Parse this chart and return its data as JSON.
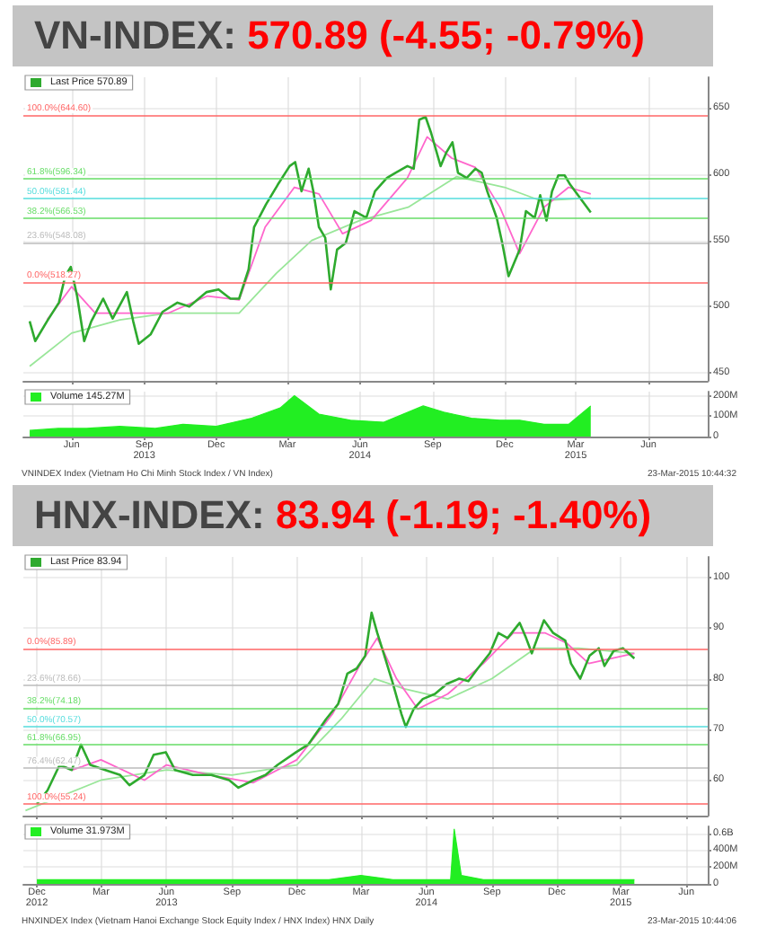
{
  "chart_data": [
    {
      "type": "line",
      "title": "VN-INDEX: 570.89 (-4.55; -0.79%)",
      "legend": "top left",
      "grid": true,
      "tick_labels": "y",
      "marker": "none",
      "xlim": [
        "2013-04-01",
        "2015-08-15"
      ],
      "xticks": [
        {
          "value": "2013-06-01",
          "label": null
        },
        {
          "value": "2013-09-01",
          "label": null
        },
        {
          "value": "2013-12-01",
          "label": null
        },
        {
          "value": "2014-03-01",
          "label": null
        },
        {
          "value": "2014-06-01",
          "label": null
        },
        {
          "value": "2014-09-01",
          "label": null
        },
        {
          "value": "2014-12-01",
          "label": null
        },
        {
          "value": "2015-03-01",
          "label": null
        },
        {
          "value": "2015-06-01",
          "label": null
        }
      ],
      "ylim": [
        444,
        673
      ],
      "yticks": [
        450,
        500,
        550,
        600,
        650
      ],
      "series": [
        {
          "name": "Last Price 570.89",
          "color": "#2eaa2e",
          "x": [
            "2013-04-09",
            "2013-04-16",
            "2013-05-01",
            "2013-05-16",
            "2013-05-24",
            "2013-05-31",
            "2013-06-08",
            "2013-06-17",
            "2013-06-26",
            "2013-07-11",
            "2013-07-23",
            "2013-08-10",
            "2013-08-18",
            "2013-08-25",
            "2013-09-09",
            "2013-09-24",
            "2013-10-13",
            "2013-10-28",
            "2013-11-19",
            "2013-12-04",
            "2013-12-19",
            "2013-12-30",
            "2014-01-11",
            "2014-01-18",
            "2014-02-02",
            "2014-02-17",
            "2014-03-04",
            "2014-03-11",
            "2014-03-19",
            "2014-03-28",
            "2014-04-03",
            "2014-04-10",
            "2014-04-18",
            "2014-04-25",
            "2014-05-03",
            "2014-05-14",
            "2014-05-25",
            "2014-06-09",
            "2014-06-20",
            "2014-07-05",
            "2014-07-16",
            "2014-07-31",
            "2014-08-08",
            "2014-08-15",
            "2014-08-23",
            "2014-08-30",
            "2014-09-11",
            "2014-09-18",
            "2014-09-26",
            "2014-10-03",
            "2014-10-14",
            "2014-10-25",
            "2014-11-02",
            "2014-11-09",
            "2014-11-21",
            "2014-11-28",
            "2014-12-06",
            "2014-12-13",
            "2014-12-20",
            "2014-12-28",
            "2015-01-08",
            "2015-01-15",
            "2015-01-23",
            "2015-01-30",
            "2015-02-07",
            "2015-02-15",
            "2015-02-22",
            "2015-03-20"
          ],
          "values": [
            489,
            474,
            489,
            503,
            523,
            530,
            508,
            474,
            489,
            506,
            491,
            511,
            489,
            472,
            479,
            496,
            503,
            500,
            511,
            513,
            506,
            506,
            528,
            560,
            577,
            592,
            606,
            609,
            587,
            604,
            587,
            560,
            552,
            513,
            543,
            548,
            572,
            567,
            587,
            597,
            601,
            606,
            604,
            641,
            643,
            631,
            606,
            616,
            624,
            601,
            597,
            604,
            601,
            587,
            567,
            548,
            523,
            533,
            543,
            572,
            567,
            584,
            565,
            587,
            599,
            599,
            592,
            571
          ]
        },
        {
          "color": "#ff66cc",
          "x": [
            "2013-05-01",
            "2013-06-01",
            "2013-07-01",
            "2013-08-15",
            "2013-10-01",
            "2013-11-20",
            "2013-12-30",
            "2014-02-01",
            "2014-03-10",
            "2014-04-10",
            "2014-05-10",
            "2014-06-15",
            "2014-07-31",
            "2014-08-25",
            "2014-09-25",
            "2014-10-25",
            "2014-11-25",
            "2014-12-20",
            "2015-01-20",
            "2015-02-20",
            "2015-03-20"
          ],
          "values": [
            490,
            515,
            495,
            495,
            495,
            508,
            505,
            560,
            590,
            585,
            555,
            565,
            597,
            628,
            612,
            605,
            575,
            540,
            575,
            590,
            585
          ]
        },
        {
          "color": "#99e699",
          "x": [
            "2013-04-09",
            "2013-06-01",
            "2013-08-01",
            "2013-10-01",
            "2013-12-30",
            "2014-02-15",
            "2014-04-01",
            "2014-06-01",
            "2014-08-01",
            "2014-10-01",
            "2014-12-01",
            "2015-01-15",
            "2015-03-20"
          ],
          "values": [
            455,
            480,
            490,
            495,
            495,
            525,
            550,
            565,
            575,
            598,
            590,
            580,
            582
          ]
        }
      ],
      "ref_lines": [
        {
          "axis": "y",
          "value": 644.6,
          "label": "100.0%(644.60)",
          "color": "#ff6666"
        },
        {
          "axis": "y",
          "value": 596.34,
          "label": "61.8%(596.34)",
          "color": "#66dd66"
        },
        {
          "axis": "y",
          "value": 581.44,
          "label": "50.0%(581.44)",
          "color": "#55dddd"
        },
        {
          "axis": "y",
          "value": 566.53,
          "label": "38.2%(566.53)",
          "color": "#66dd66"
        },
        {
          "axis": "y",
          "value": 548.08,
          "label": "23.6%(548.08)",
          "color": "#bbbbbb"
        },
        {
          "axis": "y",
          "value": 518.27,
          "label": "0.0%(518.27)",
          "color": "#ff6666"
        }
      ]
    },
    {
      "type": "area",
      "legend": "top left",
      "grid": true,
      "xlim": [
        "2013-04-01",
        "2015-08-15"
      ],
      "xticks": [
        {
          "value": "2013-06-01",
          "label": "Jun"
        },
        {
          "value": "2013-09-01",
          "label": "Sep\n2013"
        },
        {
          "value": "2013-12-01",
          "label": "Dec"
        },
        {
          "value": "2014-03-01",
          "label": "Mar"
        },
        {
          "value": "2014-06-01",
          "label": "Jun\n2014"
        },
        {
          "value": "2014-09-01",
          "label": "Sep"
        },
        {
          "value": "2014-12-01",
          "label": "Dec"
        },
        {
          "value": "2015-03-01",
          "label": "Mar\n2015"
        },
        {
          "value": "2015-06-01",
          "label": "Jun"
        }
      ],
      "ylim": [
        0,
        220000000
      ],
      "yticks": [
        {
          "value": 0,
          "label": "0"
        },
        {
          "value": 100000000,
          "label": "100M"
        },
        {
          "value": 200000000,
          "label": "200M"
        }
      ],
      "x": [
        "2013-04-09",
        "2013-05-15",
        "2013-06-20",
        "2013-08-01",
        "2013-09-15",
        "2013-10-20",
        "2013-12-01",
        "2014-01-15",
        "2014-02-20",
        "2014-03-10",
        "2014-04-10",
        "2014-05-20",
        "2014-07-01",
        "2014-08-20",
        "2014-09-15",
        "2014-10-20",
        "2014-11-25",
        "2014-12-20",
        "2015-01-20",
        "2015-02-20",
        "2015-03-20"
      ],
      "series": [
        {
          "name": "Volume 145.27M",
          "color": "#22ee22",
          "values": [
            30000000,
            40000000,
            40000000,
            50000000,
            40000000,
            60000000,
            50000000,
            90000000,
            140000000,
            200000000,
            110000000,
            80000000,
            70000000,
            150000000,
            120000000,
            90000000,
            80000000,
            80000000,
            60000000,
            60000000,
            150000000
          ]
        }
      ],
      "annotations": [
        "VNINDEX Index (Vietnam Ho Chi Minh Stock Index / VN Index)",
        "23-Mar-2015 10:44:32"
      ]
    },
    {
      "type": "line",
      "title": "HNX-INDEX: 83.94 (-1.19; -1.40%)",
      "legend": "top left",
      "grid": true,
      "tick_labels": "y",
      "marker": "none",
      "xlim": [
        "2012-11-12",
        "2015-07-01"
      ],
      "xticks": [
        {
          "value": "2012-12-01",
          "label": null
        },
        {
          "value": "2013-03-01",
          "label": null
        },
        {
          "value": "2013-06-01",
          "label": null
        },
        {
          "value": "2013-09-01",
          "label": null
        },
        {
          "value": "2013-12-01",
          "label": null
        },
        {
          "value": "2014-03-01",
          "label": null
        },
        {
          "value": "2014-06-01",
          "label": null
        },
        {
          "value": "2014-09-01",
          "label": null
        },
        {
          "value": "2014-12-01",
          "label": null
        },
        {
          "value": "2015-03-01",
          "label": null
        },
        {
          "value": "2015-06-01",
          "label": null
        }
      ],
      "ylim": [
        53,
        104
      ],
      "yticks": [
        60,
        70,
        80,
        90,
        100
      ],
      "series": [
        {
          "name": "Last Price 83.94",
          "color": "#2eaa2e",
          "x": [
            "2012-12-01",
            "2012-12-16",
            "2013-01-02",
            "2013-01-19",
            "2013-02-01",
            "2013-02-14",
            "2013-03-07",
            "2013-03-28",
            "2013-04-10",
            "2013-05-01",
            "2013-05-14",
            "2013-05-31",
            "2013-06-13",
            "2013-07-08",
            "2013-08-03",
            "2013-08-28",
            "2013-09-10",
            "2013-10-01",
            "2013-10-18",
            "2013-11-04",
            "2013-11-30",
            "2013-12-17",
            "2014-01-11",
            "2014-01-28",
            "2014-02-10",
            "2014-02-23",
            "2014-03-07",
            "2014-03-16",
            "2014-03-24",
            "2014-04-02",
            "2014-04-15",
            "2014-04-27",
            "2014-05-03",
            "2014-05-14",
            "2014-05-27",
            "2014-06-13",
            "2014-06-30",
            "2014-07-17",
            "2014-07-30",
            "2014-08-12",
            "2014-08-29",
            "2014-09-10",
            "2014-09-23",
            "2014-10-10",
            "2014-10-19",
            "2014-10-27",
            "2014-11-13",
            "2014-11-26",
            "2014-12-13",
            "2014-12-21",
            "2015-01-03",
            "2015-01-16",
            "2015-01-29",
            "2015-02-06",
            "2015-02-19",
            "2015-03-04",
            "2015-03-12",
            "2015-03-20"
          ],
          "values": [
            55.3,
            58,
            63,
            62,
            67,
            63,
            62,
            61,
            59,
            61,
            65,
            65.5,
            62,
            61,
            61,
            60,
            58.5,
            60,
            61,
            63,
            65.5,
            67,
            72,
            75,
            81,
            82,
            84.5,
            93,
            89,
            85,
            79,
            73,
            70.5,
            74,
            76,
            77,
            79,
            80,
            79.5,
            82,
            85,
            89,
            88,
            91,
            88,
            85,
            91.5,
            89,
            87.5,
            83,
            80,
            84.5,
            86,
            82.5,
            85.5,
            86,
            85,
            84
          ]
        },
        {
          "color": "#ff66cc",
          "x": [
            "2013-01-20",
            "2013-03-01",
            "2013-05-01",
            "2013-06-01",
            "2013-08-01",
            "2013-10-01",
            "2013-12-01",
            "2014-01-20",
            "2014-03-01",
            "2014-03-24",
            "2014-04-20",
            "2014-05-20",
            "2014-07-01",
            "2014-08-20",
            "2014-10-01",
            "2014-11-15",
            "2014-12-15",
            "2015-01-15",
            "2015-03-20"
          ],
          "values": [
            62,
            64,
            60,
            63,
            61,
            59.5,
            64,
            73,
            83,
            88,
            80,
            74,
            77,
            83,
            89,
            89,
            87,
            83,
            85
          ]
        },
        {
          "color": "#99e699",
          "x": [
            "2012-11-15",
            "2013-03-01",
            "2013-06-01",
            "2013-09-01",
            "2013-12-01",
            "2014-02-01",
            "2014-03-20",
            "2014-05-01",
            "2014-07-01",
            "2014-09-01",
            "2014-11-01",
            "2015-01-01",
            "2015-03-20"
          ],
          "values": [
            54,
            60,
            62,
            61,
            63,
            72,
            80,
            78,
            76,
            80,
            86,
            86,
            85
          ]
        }
      ],
      "ref_lines": [
        {
          "axis": "y",
          "value": 85.89,
          "label": "0.0%(85.89)",
          "color": "#ff6666"
        },
        {
          "axis": "y",
          "value": 78.66,
          "label": "23.6%(78.66)",
          "color": "#bbbbbb"
        },
        {
          "axis": "y",
          "value": 74.18,
          "label": "38.2%(74.18)",
          "color": "#66dd66"
        },
        {
          "axis": "y",
          "value": 70.57,
          "label": "50.0%(70.57)",
          "color": "#55dddd"
        },
        {
          "axis": "y",
          "value": 66.95,
          "label": "61.8%(66.95)",
          "color": "#66dd66"
        },
        {
          "axis": "y",
          "value": 62.47,
          "label": "76.4%(62.47)",
          "color": "#bbbbbb"
        },
        {
          "axis": "y",
          "value": 55.24,
          "label": "100.0%(55.24)",
          "color": "#ff6666"
        }
      ]
    },
    {
      "type": "area",
      "legend": "top left",
      "grid": true,
      "xlim": [
        "2012-11-12",
        "2015-07-01"
      ],
      "xticks": [
        {
          "value": "2012-12-01",
          "label": "Dec\n2012"
        },
        {
          "value": "2013-03-01",
          "label": "Mar"
        },
        {
          "value": "2013-06-01",
          "label": "Jun\n2013"
        },
        {
          "value": "2013-09-01",
          "label": "Sep"
        },
        {
          "value": "2013-12-01",
          "label": "Dec"
        },
        {
          "value": "2014-03-01",
          "label": "Mar"
        },
        {
          "value": "2014-06-01",
          "label": "Jun\n2014"
        },
        {
          "value": "2014-09-01",
          "label": "Sep"
        },
        {
          "value": "2014-12-01",
          "label": "Dec"
        },
        {
          "value": "2015-03-01",
          "label": "Mar\n2015"
        },
        {
          "value": "2015-06-01",
          "label": "Jun"
        }
      ],
      "ylim": [
        0,
        680000000
      ],
      "yticks": [
        {
          "value": 0,
          "label": "0"
        },
        {
          "value": 200000000,
          "label": "200M"
        },
        {
          "value": 400000000,
          "label": "400M"
        },
        {
          "value": 600000000,
          "label": "0.6B"
        }
      ],
      "x": [
        "2012-12-01",
        "2012-12-20",
        "2013-02-01",
        "2013-04-01",
        "2013-06-01",
        "2013-08-01",
        "2013-10-01",
        "2013-12-01",
        "2014-01-15",
        "2014-03-01",
        "2014-04-15",
        "2014-06-01",
        "2014-07-05",
        "2014-07-10",
        "2014-07-20",
        "2014-08-20",
        "2014-10-01",
        "2014-12-01",
        "2015-02-01",
        "2015-03-20"
      ],
      "series": [
        {
          "name": "Volume 31.973M",
          "color": "#22ee22",
          "values": [
            50000000,
            50000000,
            50000000,
            50000000,
            50000000,
            50000000,
            50000000,
            50000000,
            50000000,
            100000000,
            50000000,
            50000000,
            50000000,
            650000000,
            100000000,
            50000000,
            50000000,
            50000000,
            50000000,
            50000000
          ]
        }
      ],
      "annotations": [
        "HNXINDEX Index (Vietnam Hanoi Exchange Stock Equity Index / HNX Index) HNX Daily",
        "23-Mar-2015 10:44:06"
      ]
    }
  ]
}
